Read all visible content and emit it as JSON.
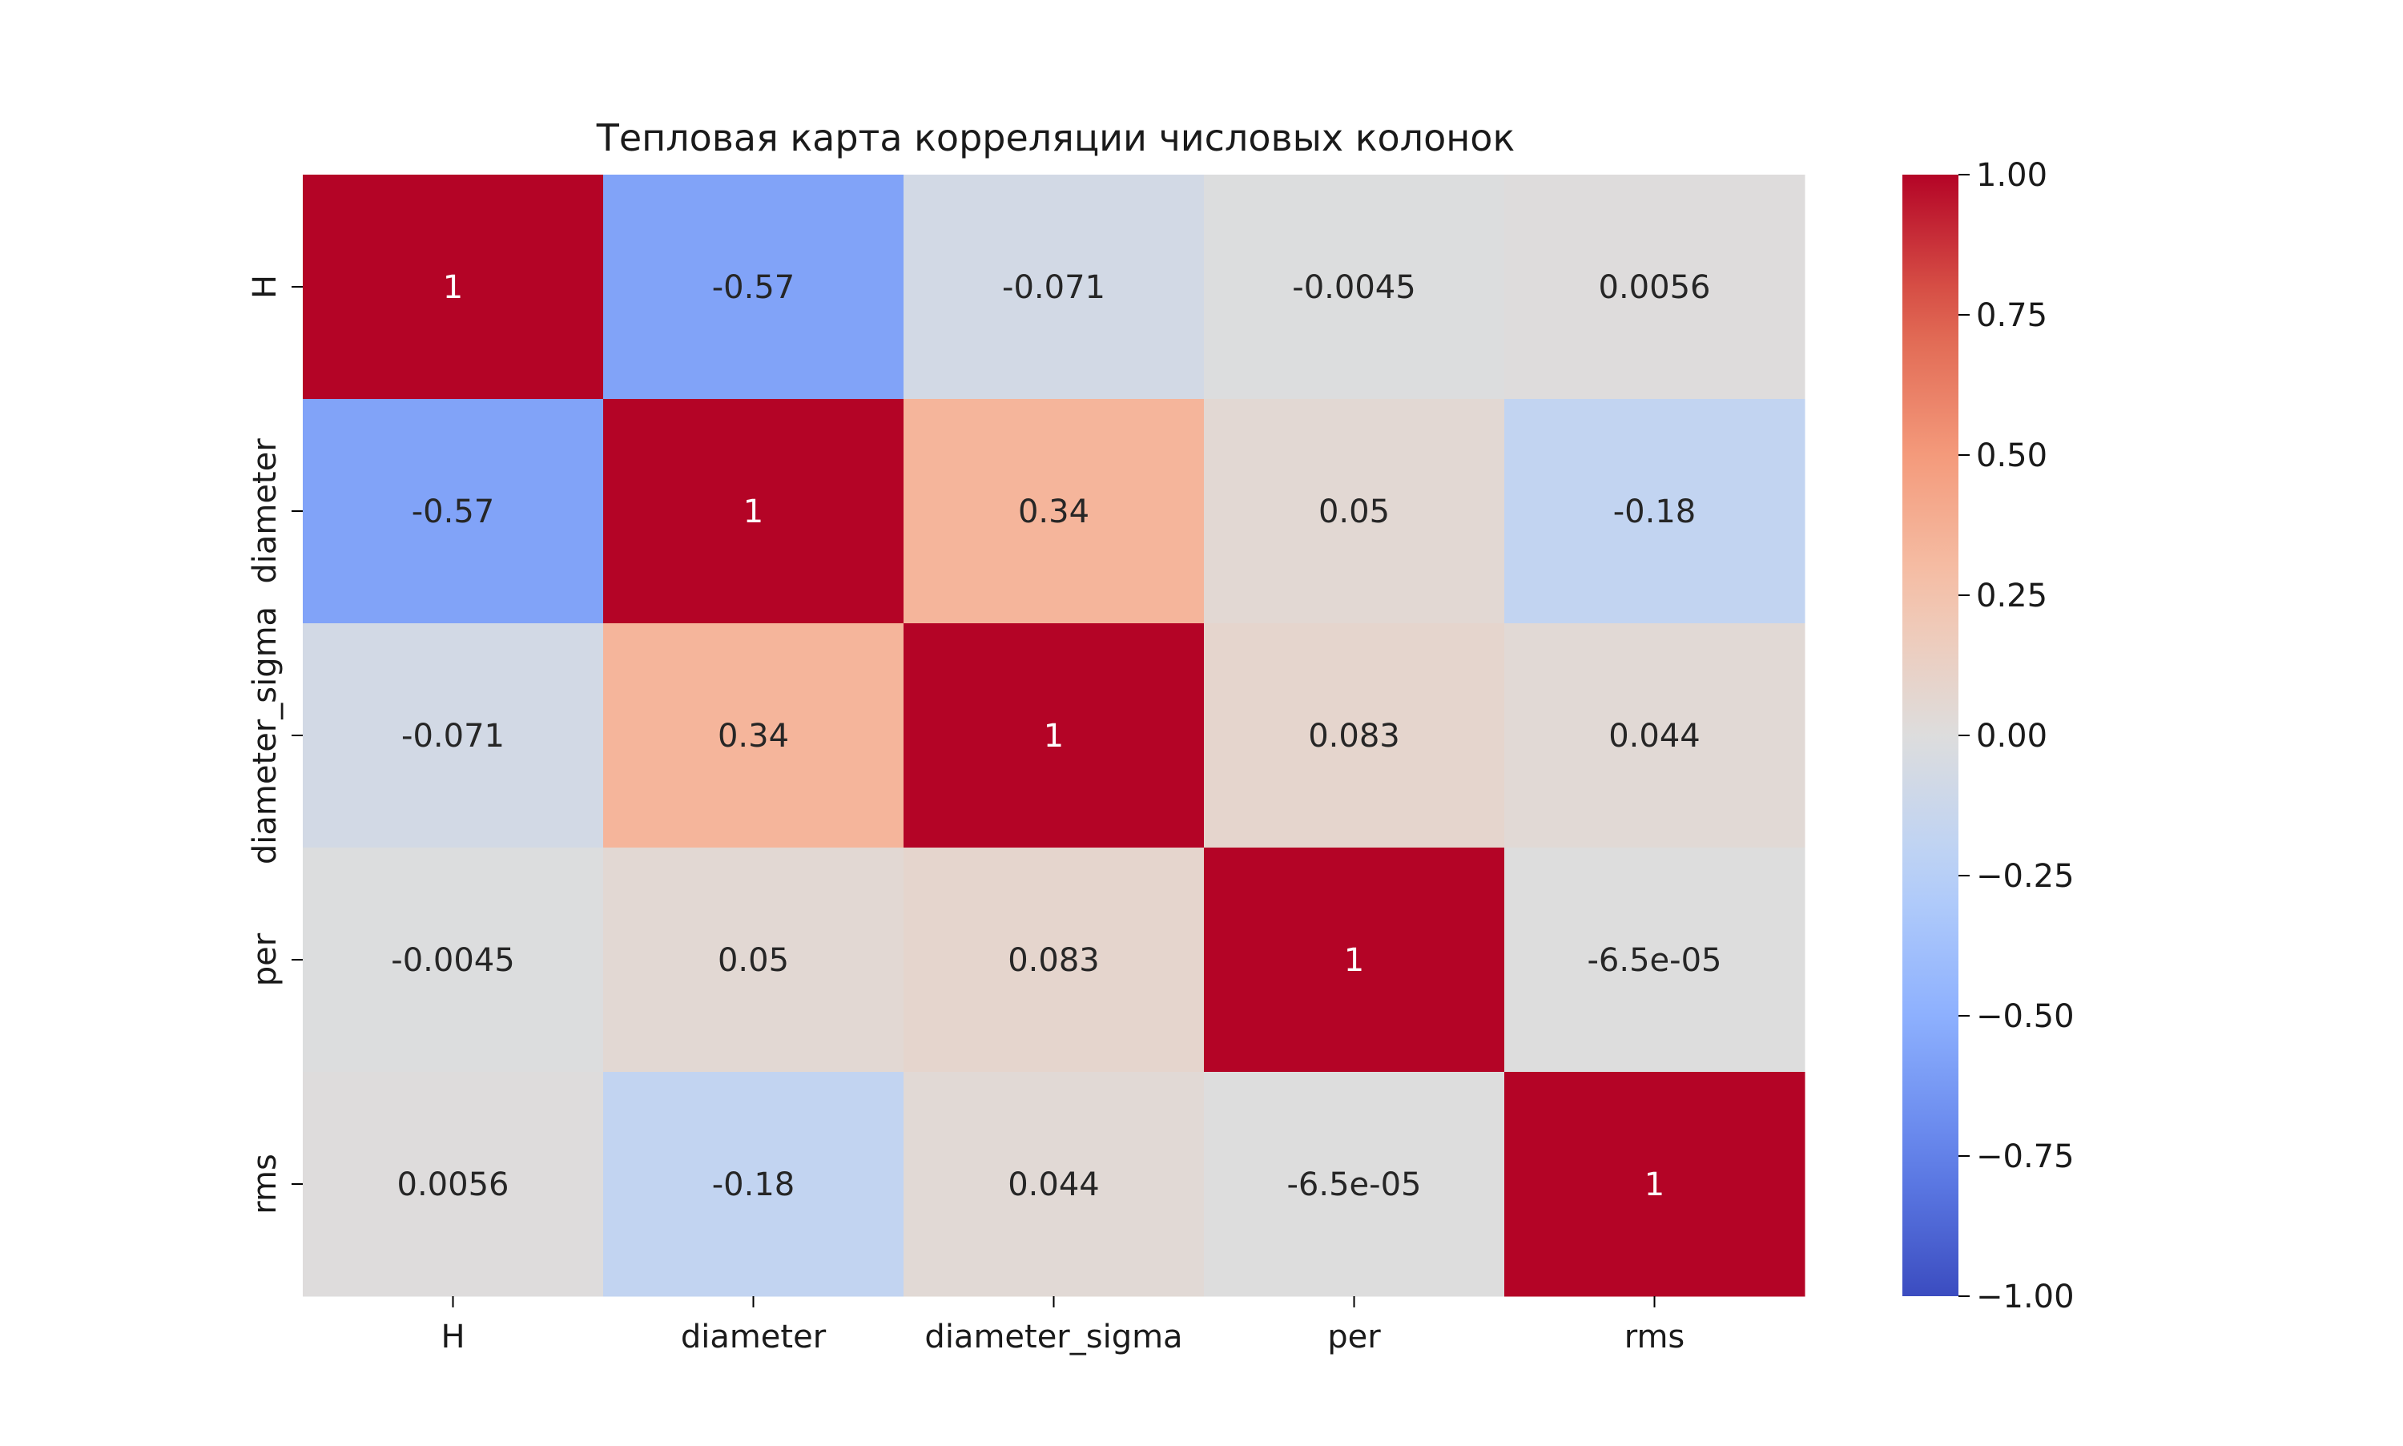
{
  "chart_data": {
    "type": "heatmap",
    "title": "Тепловая карта корреляции числовых колонок",
    "xlabel": "",
    "ylabel": "",
    "columns": [
      "H",
      "diameter",
      "diameter_sigma",
      "per",
      "rms"
    ],
    "rows": [
      "H",
      "diameter",
      "diameter_sigma",
      "per",
      "rms"
    ],
    "values": [
      [
        1,
        -0.57,
        -0.071,
        -0.0045,
        0.0056
      ],
      [
        -0.57,
        1,
        0.34,
        0.05,
        -0.18
      ],
      [
        -0.071,
        0.34,
        1,
        0.083,
        0.044
      ],
      [
        -0.0045,
        0.05,
        0.083,
        1,
        -6.5e-05
      ],
      [
        0.0056,
        -0.18,
        0.044,
        -6.5e-05,
        1
      ]
    ],
    "annotations": [
      [
        "1",
        "-0.57",
        "-0.071",
        "-0.0045",
        "0.0056"
      ],
      [
        "-0.57",
        "1",
        "0.34",
        "0.05",
        "-0.18"
      ],
      [
        "-0.071",
        "0.34",
        "1",
        "0.083",
        "0.044"
      ],
      [
        "-0.0045",
        "0.05",
        "0.083",
        "1",
        "-6.5e-05"
      ],
      [
        "0.0056",
        "-0.18",
        "0.044",
        "-6.5e-05",
        "1"
      ]
    ],
    "colormap": "coolwarm",
    "vmin": -1,
    "vmax": 1,
    "colorbar": {
      "ticks": [
        1.0,
        0.75,
        0.5,
        0.25,
        0.0,
        -0.25,
        -0.5,
        -0.75,
        -1.0
      ],
      "tick_labels": [
        "1.00",
        "0.75",
        "0.50",
        "0.25",
        "0.00",
        "−0.25",
        "−0.50",
        "−0.75",
        "−1.00"
      ]
    }
  }
}
